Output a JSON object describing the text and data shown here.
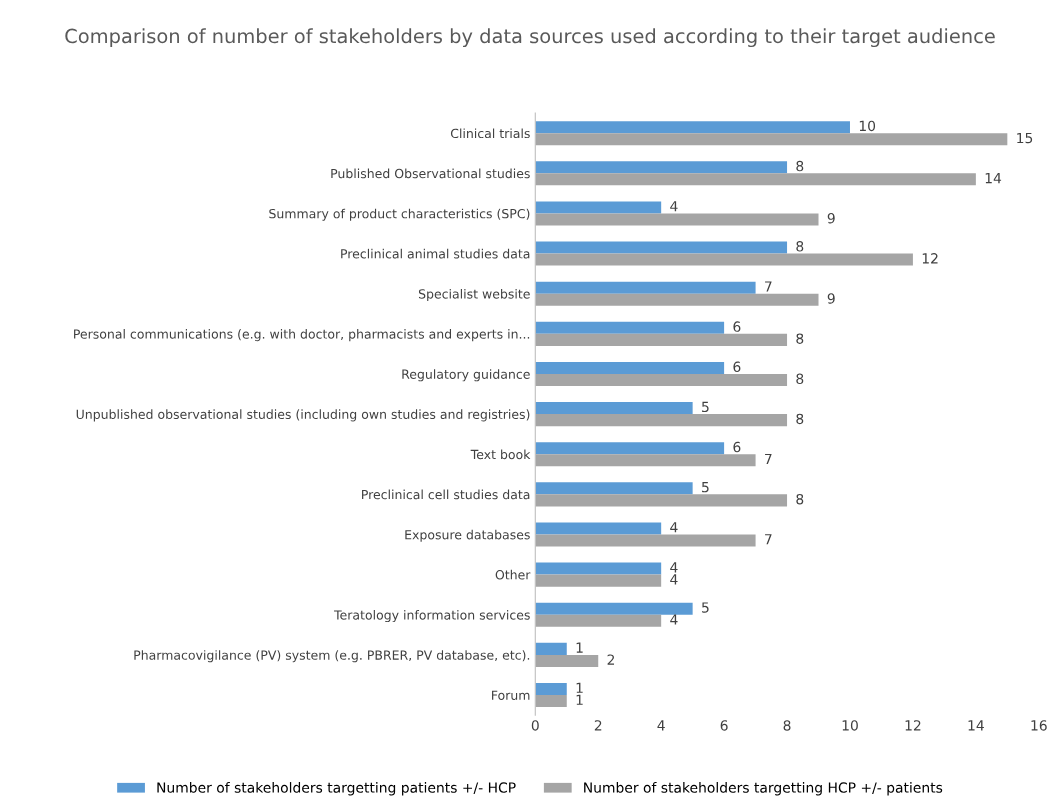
{
  "chart_data": {
    "type": "bar",
    "orientation": "horizontal",
    "title": "Comparison of number of stakeholders by data sources used according to their target audience",
    "categories": [
      "Clinical trials",
      "Published Observational studies",
      "Summary of product characteristics (SPC)",
      "Preclinical animal studies data",
      "Specialist website",
      "Personal communications (e.g. with doctor, pharmacists and experts in...",
      "Regulatory guidance",
      "Unpublished observational studies (including own studies and registries)",
      "Text book",
      "Preclinical cell studies data",
      "Exposure databases",
      "Other",
      "Teratology information services",
      "Pharmacovigilance (PV) system (e.g. PBRER, PV database, etc).",
      "Forum"
    ],
    "series": [
      {
        "name": "Number of stakeholders targetting patients +/- HCP",
        "color": "#5b9bd5",
        "values": [
          10,
          8,
          4,
          8,
          7,
          6,
          6,
          5,
          6,
          5,
          4,
          4,
          5,
          1,
          1
        ]
      },
      {
        "name": "Number of stakeholders targetting HCP +/- patients",
        "color": "#a5a5a5",
        "values": [
          15,
          14,
          9,
          12,
          9,
          8,
          8,
          8,
          7,
          8,
          7,
          4,
          4,
          2,
          1
        ]
      }
    ],
    "xlim": [
      0,
      16
    ],
    "xticks": [
      0,
      2,
      4,
      6,
      8,
      10,
      12,
      14,
      16
    ],
    "grid": false,
    "legend": "bottom",
    "data_labels": true
  }
}
